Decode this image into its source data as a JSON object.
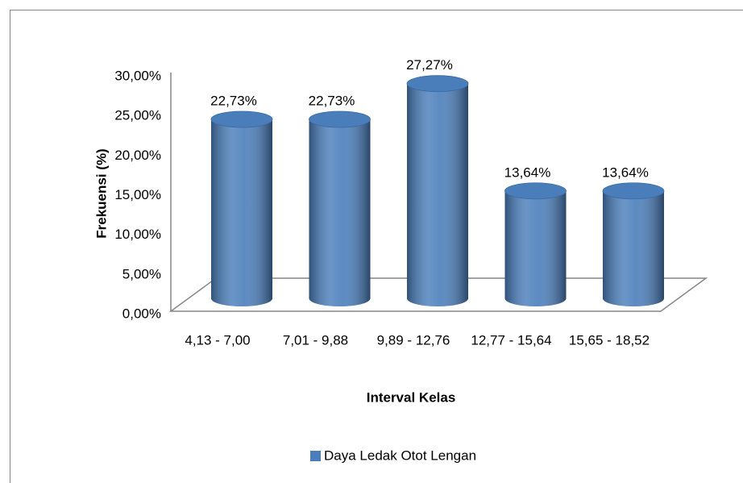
{
  "chart_data": {
    "type": "bar3d",
    "categories": [
      "4,13 - 7,00",
      "7,01 - 9,88",
      "9,89 - 12,76",
      "12,77 - 15,64",
      "15,65 - 18,52"
    ],
    "series": [
      {
        "name": "Daya Ledak Otot Lengan",
        "color": "#4a7ebb",
        "values": [
          22.73,
          22.73,
          27.27,
          13.64,
          13.64
        ],
        "value_labels": [
          "22,73%",
          "22,73%",
          "27,27%",
          "13,64%",
          "13,64%"
        ]
      }
    ],
    "ylim": [
      0,
      30
    ],
    "yticks": [
      {
        "value": 0,
        "label": "0,00%"
      },
      {
        "value": 5,
        "label": "5,00%"
      },
      {
        "value": 10,
        "label": "10,00%"
      },
      {
        "value": 15,
        "label": "15,00%"
      },
      {
        "value": 20,
        "label": "20,00%"
      },
      {
        "value": 25,
        "label": "25,00%"
      },
      {
        "value": 30,
        "label": "30,00%"
      }
    ],
    "y_label": "Frekuensi (%)",
    "x_label": "Interval Kelas",
    "grid": false,
    "legend": "bottom"
  }
}
